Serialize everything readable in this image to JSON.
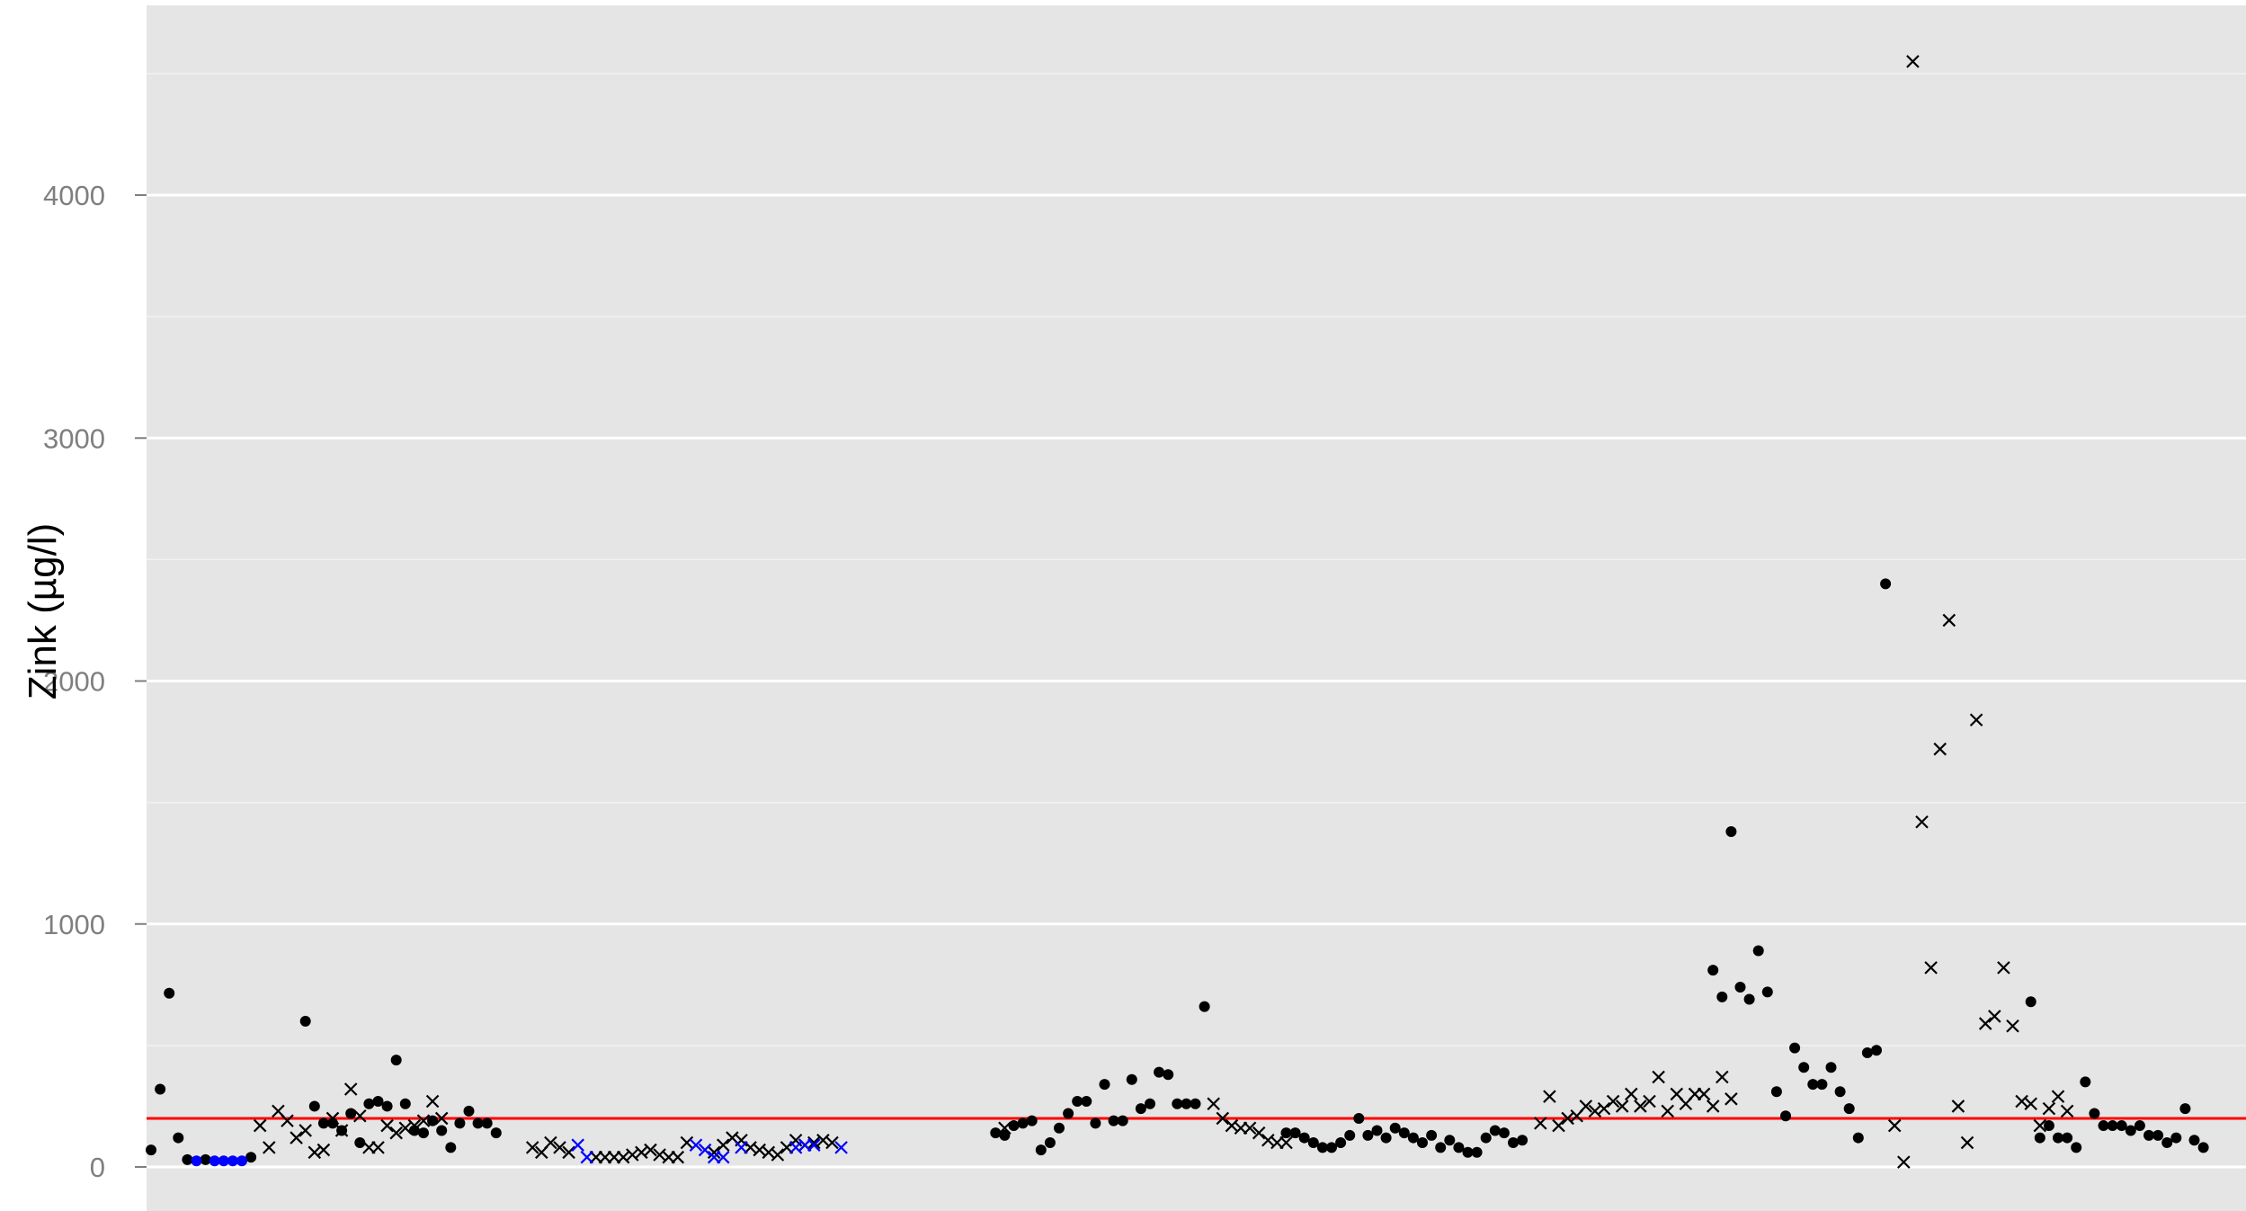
{
  "chart_data": {
    "type": "scatter",
    "ylabel": "Zink (µg/l)",
    "xlabel": "",
    "ylim": [
      -180,
      4790
    ],
    "yticks": [
      0,
      1000,
      2000,
      3000,
      4000
    ],
    "grid": true,
    "x_range": [
      0,
      227
    ],
    "reference_line": {
      "value": 200,
      "color": "#ff0000"
    },
    "colors": {
      "panel": "#e5e5e5",
      "grid": "#ffffff",
      "marks": "#000000",
      "highlight": "#0000ff"
    },
    "series": [
      {
        "marker": "dot",
        "color": "#000000",
        "points": [
          [
            1,
            70
          ],
          [
            2,
            320
          ],
          [
            3,
            715
          ],
          [
            4,
            120
          ],
          [
            5,
            30
          ],
          [
            7,
            30
          ],
          [
            12,
            40
          ],
          [
            18,
            600
          ],
          [
            19,
            250
          ],
          [
            20,
            180
          ],
          [
            21,
            180
          ],
          [
            22,
            150
          ],
          [
            23,
            220
          ],
          [
            24,
            100
          ],
          [
            25,
            260
          ],
          [
            26,
            270
          ],
          [
            27,
            250
          ],
          [
            28,
            440
          ],
          [
            29,
            260
          ],
          [
            30,
            150
          ],
          [
            31,
            140
          ],
          [
            32,
            190
          ],
          [
            33,
            150
          ],
          [
            34,
            80
          ],
          [
            35,
            180
          ],
          [
            36,
            230
          ],
          [
            37,
            180
          ],
          [
            38,
            180
          ],
          [
            39,
            140
          ],
          [
            94,
            140
          ],
          [
            95,
            130
          ],
          [
            96,
            170
          ],
          [
            97,
            180
          ],
          [
            98,
            190
          ],
          [
            99,
            70
          ],
          [
            100,
            100
          ],
          [
            101,
            160
          ],
          [
            102,
            220
          ],
          [
            103,
            270
          ],
          [
            104,
            270
          ],
          [
            105,
            180
          ],
          [
            106,
            340
          ],
          [
            107,
            190
          ],
          [
            108,
            190
          ],
          [
            109,
            360
          ],
          [
            110,
            240
          ],
          [
            111,
            260
          ],
          [
            112,
            390
          ],
          [
            113,
            380
          ],
          [
            114,
            260
          ],
          [
            115,
            260
          ],
          [
            116,
            260
          ],
          [
            117,
            660
          ],
          [
            126,
            140
          ],
          [
            127,
            140
          ],
          [
            128,
            120
          ],
          [
            129,
            100
          ],
          [
            130,
            80
          ],
          [
            131,
            80
          ],
          [
            132,
            100
          ],
          [
            133,
            130
          ],
          [
            134,
            200
          ],
          [
            135,
            130
          ],
          [
            136,
            150
          ],
          [
            137,
            120
          ],
          [
            138,
            160
          ],
          [
            139,
            140
          ],
          [
            140,
            120
          ],
          [
            141,
            100
          ],
          [
            142,
            130
          ],
          [
            143,
            80
          ],
          [
            144,
            110
          ],
          [
            145,
            80
          ],
          [
            146,
            60
          ],
          [
            147,
            60
          ],
          [
            148,
            120
          ],
          [
            149,
            150
          ],
          [
            150,
            140
          ],
          [
            151,
            100
          ],
          [
            152,
            110
          ],
          [
            173,
            810
          ],
          [
            174,
            700
          ],
          [
            175,
            1380
          ],
          [
            176,
            740
          ],
          [
            177,
            690
          ],
          [
            178,
            890
          ],
          [
            179,
            720
          ],
          [
            180,
            310
          ],
          [
            181,
            210
          ],
          [
            182,
            490
          ],
          [
            183,
            410
          ],
          [
            184,
            340
          ],
          [
            185,
            340
          ],
          [
            186,
            410
          ],
          [
            187,
            310
          ],
          [
            188,
            240
          ],
          [
            189,
            120
          ],
          [
            190,
            470
          ],
          [
            191,
            480
          ],
          [
            192,
            2400
          ],
          [
            208,
            680
          ],
          [
            209,
            120
          ],
          [
            210,
            170
          ],
          [
            211,
            120
          ],
          [
            212,
            120
          ],
          [
            213,
            80
          ],
          [
            214,
            350
          ],
          [
            215,
            220
          ],
          [
            216,
            170
          ],
          [
            217,
            170
          ],
          [
            218,
            170
          ],
          [
            219,
            150
          ],
          [
            220,
            170
          ],
          [
            221,
            130
          ],
          [
            222,
            130
          ],
          [
            223,
            100
          ],
          [
            224,
            120
          ],
          [
            225,
            240
          ],
          [
            226,
            110
          ],
          [
            227,
            80
          ]
        ]
      },
      {
        "marker": "dot",
        "color": "#0000ff",
        "points": [
          [
            6,
            25
          ],
          [
            8,
            25
          ],
          [
            9,
            25
          ],
          [
            10,
            25
          ],
          [
            11,
            25
          ]
        ]
      },
      {
        "marker": "cross",
        "color": "#000000",
        "points": [
          [
            13,
            170
          ],
          [
            14,
            80
          ],
          [
            15,
            230
          ],
          [
            16,
            190
          ],
          [
            17,
            120
          ],
          [
            18,
            150
          ],
          [
            19,
            60
          ],
          [
            20,
            70
          ],
          [
            21,
            200
          ],
          [
            22,
            150
          ],
          [
            23,
            320
          ],
          [
            24,
            210
          ],
          [
            25,
            80
          ],
          [
            26,
            80
          ],
          [
            27,
            170
          ],
          [
            28,
            140
          ],
          [
            29,
            160
          ],
          [
            30,
            170
          ],
          [
            31,
            190
          ],
          [
            32,
            270
          ],
          [
            33,
            200
          ],
          [
            43,
            80
          ],
          [
            44,
            60
          ],
          [
            45,
            100
          ],
          [
            46,
            80
          ],
          [
            47,
            60
          ],
          [
            50,
            40
          ],
          [
            51,
            40
          ],
          [
            52,
            40
          ],
          [
            53,
            40
          ],
          [
            54,
            50
          ],
          [
            55,
            60
          ],
          [
            56,
            70
          ],
          [
            57,
            50
          ],
          [
            58,
            40
          ],
          [
            59,
            40
          ],
          [
            60,
            100
          ],
          [
            63,
            60
          ],
          [
            64,
            90
          ],
          [
            65,
            120
          ],
          [
            66,
            110
          ],
          [
            67,
            80
          ],
          [
            68,
            70
          ],
          [
            69,
            60
          ],
          [
            70,
            50
          ],
          [
            71,
            80
          ],
          [
            72,
            110
          ],
          [
            73,
            90
          ],
          [
            74,
            100
          ],
          [
            75,
            110
          ],
          [
            76,
            100
          ],
          [
            95,
            160
          ],
          [
            118,
            260
          ],
          [
            119,
            200
          ],
          [
            120,
            170
          ],
          [
            121,
            160
          ],
          [
            122,
            160
          ],
          [
            123,
            140
          ],
          [
            124,
            110
          ],
          [
            125,
            100
          ],
          [
            126,
            100
          ],
          [
            154,
            180
          ],
          [
            155,
            290
          ],
          [
            156,
            170
          ],
          [
            157,
            200
          ],
          [
            158,
            210
          ],
          [
            159,
            250
          ],
          [
            160,
            230
          ],
          [
            161,
            240
          ],
          [
            162,
            270
          ],
          [
            163,
            250
          ],
          [
            164,
            300
          ],
          [
            165,
            250
          ],
          [
            166,
            270
          ],
          [
            167,
            370
          ],
          [
            168,
            230
          ],
          [
            169,
            300
          ],
          [
            170,
            260
          ],
          [
            171,
            300
          ],
          [
            172,
            300
          ],
          [
            173,
            250
          ],
          [
            174,
            370
          ],
          [
            175,
            280
          ],
          [
            193,
            170
          ],
          [
            194,
            20
          ],
          [
            195,
            4550
          ],
          [
            196,
            1420
          ],
          [
            197,
            820
          ],
          [
            198,
            1720
          ],
          [
            199,
            2250
          ],
          [
            200,
            250
          ],
          [
            201,
            100
          ],
          [
            202,
            1840
          ],
          [
            203,
            590
          ],
          [
            204,
            620
          ],
          [
            205,
            820
          ],
          [
            206,
            580
          ],
          [
            207,
            270
          ],
          [
            208,
            260
          ],
          [
            209,
            170
          ],
          [
            210,
            240
          ],
          [
            211,
            290
          ],
          [
            212,
            230
          ]
        ]
      },
      {
        "marker": "cross",
        "color": "#0000ff",
        "points": [
          [
            48,
            90
          ],
          [
            49,
            40
          ],
          [
            61,
            90
          ],
          [
            62,
            70
          ],
          [
            63,
            40
          ],
          [
            64,
            40
          ],
          [
            66,
            80
          ],
          [
            72,
            80
          ],
          [
            73,
            90
          ],
          [
            74,
            90
          ],
          [
            77,
            80
          ]
        ]
      }
    ]
  }
}
